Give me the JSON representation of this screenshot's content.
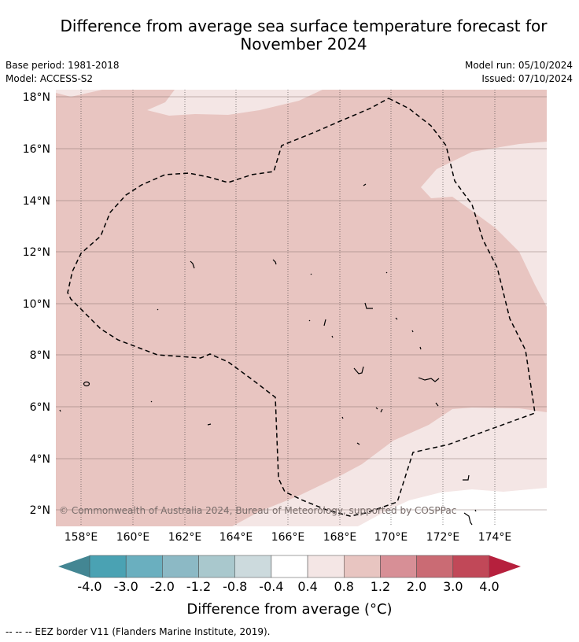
{
  "title": {
    "line1": "Difference from average sea surface temperature forecast for",
    "line2": "November 2024"
  },
  "meta": {
    "base_period": "Base period: 1981-2018",
    "model": "Model: ACCESS-S2",
    "model_run": "Model run: 05/10/2024",
    "issued": "Issued: 07/10/2024"
  },
  "map": {
    "lon_labels": [
      "158°E",
      "160°E",
      "162°E",
      "164°E",
      "166°E",
      "168°E",
      "170°E",
      "172°E",
      "174°E"
    ],
    "lat_labels": [
      "18°N",
      "16°N",
      "14°N",
      "12°N",
      "10°N",
      "8°N",
      "6°N",
      "4°N",
      "2°N"
    ],
    "copyright": "© Commonwealth of Australia 2024, Bureau of Meteorology, supported by COSPPac",
    "colors": {
      "warm_0_4_0_8": "#f4e6e5",
      "warm_0_8_1_2": "#e8c5c1",
      "neutral": "#ffffff",
      "grid": "#888888",
      "eez": "#000000"
    }
  },
  "colorbar": {
    "labels": [
      "-4.0",
      "-3.0",
      "-2.0",
      "-1.2",
      "-0.8",
      "-0.4",
      "0.4",
      "0.8",
      "1.2",
      "2.0",
      "3.0",
      "4.0"
    ],
    "colors": [
      "#438693",
      "#4aa2b3",
      "#6aafbf",
      "#8cb9c5",
      "#a9c8cd",
      "#ccdadd",
      "#ffffff",
      "#f4e6e5",
      "#e8c5c1",
      "#d78f96",
      "#ca6b74",
      "#c14858"
    ],
    "extend_low": "#438693",
    "extend_high": "#b6203d",
    "title": "Difference from average (°C)"
  },
  "footnote": "--  --  -- EEZ border V11 (Flanders Marine Institute, 2019)."
}
